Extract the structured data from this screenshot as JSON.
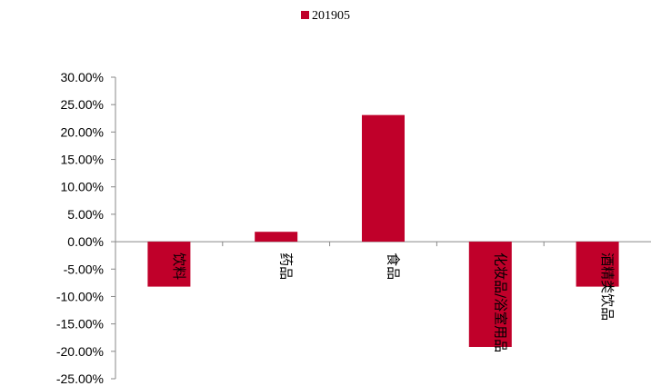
{
  "chart_data": {
    "type": "bar",
    "categories": [
      "饮料",
      "药品",
      "食品",
      "化妆品/浴室用品",
      "酒精类饮品"
    ],
    "series": [
      {
        "name": "201905",
        "values": [
          -8.2,
          1.8,
          23.1,
          -19.2,
          -8.2
        ]
      }
    ],
    "ylim": [
      -25,
      30
    ],
    "yticks": [
      "30.00%",
      "25.00%",
      "20.00%",
      "15.00%",
      "10.00%",
      "5.00%",
      "0.00%",
      "-5.00%",
      "-10.00%",
      "-15.00%",
      "-20.00%",
      "-25.00%"
    ],
    "ytick_values": [
      30,
      25,
      20,
      15,
      10,
      5,
      0,
      -5,
      -10,
      -15,
      -20,
      -25
    ],
    "legend_position": "top-center",
    "grid": false,
    "colors": {
      "bar": "#c0002a",
      "axis": "#888888",
      "text": "#000000"
    }
  }
}
